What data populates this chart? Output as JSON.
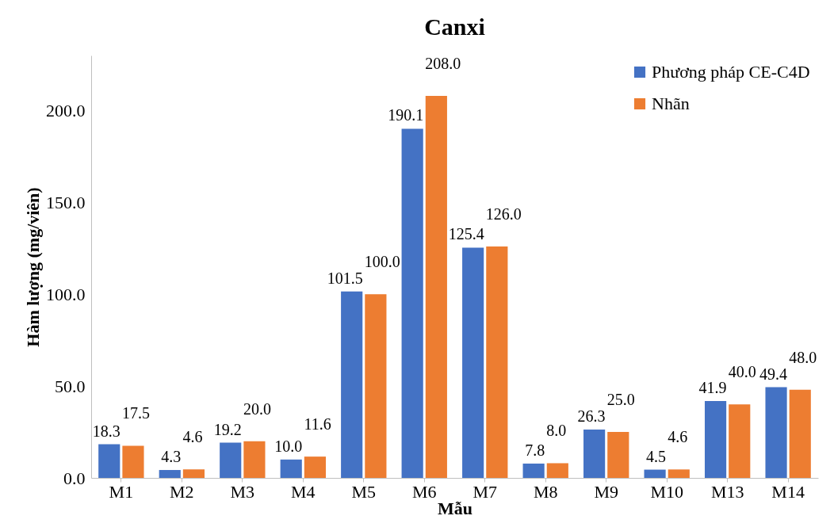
{
  "chart_data": {
    "type": "bar",
    "title": "Canxi",
    "xlabel": "Mẫu",
    "ylabel": "Hàm lượng (mg/viên)",
    "categories": [
      "M1",
      "M2",
      "M3",
      "M4",
      "M5",
      "M6",
      "M7",
      "M8",
      "M9",
      "M10",
      "M13",
      "M14"
    ],
    "series": [
      {
        "name": "Phương pháp CE-C4D",
        "color": "#4472c4",
        "values": [
          18.3,
          4.3,
          19.2,
          10.0,
          101.5,
          190.1,
          125.4,
          7.8,
          26.3,
          4.5,
          41.9,
          49.4
        ],
        "value_labels": [
          "18.3",
          "4.3",
          "19.2",
          "10.0",
          "101.5",
          "190.1",
          "125.4",
          "7.8",
          "26.3",
          "4.5",
          "41.9",
          "49.4"
        ]
      },
      {
        "name": "Nhãn",
        "color": "#ed7d31",
        "values": [
          17.5,
          4.6,
          20.0,
          11.6,
          100.0,
          208.0,
          126.0,
          8.0,
          25.0,
          4.6,
          40.0,
          48.0
        ],
        "value_labels": [
          "17.5",
          "4.6",
          "20.0",
          "11.6",
          "100.0",
          "208.0",
          "126.0",
          "8.0",
          "25.0",
          "4.6",
          "40.0",
          "48.0"
        ]
      }
    ],
    "ylim": [
      0,
      230
    ],
    "yticks": [
      {
        "value": 0,
        "label": "0.0"
      },
      {
        "value": 50,
        "label": "50.0"
      },
      {
        "value": 100,
        "label": "100.0"
      },
      {
        "value": 150,
        "label": "150.0"
      },
      {
        "value": 200,
        "label": "200.0"
      }
    ],
    "legend": "top right"
  }
}
